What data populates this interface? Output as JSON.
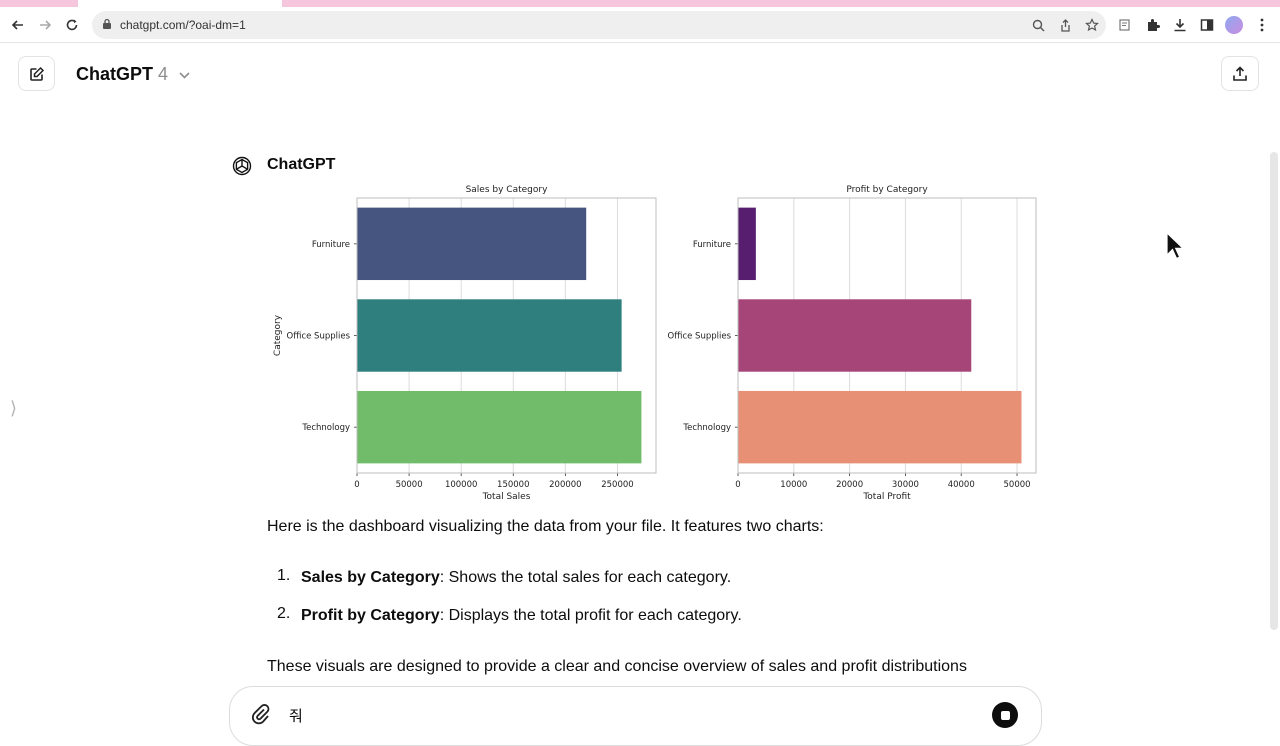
{
  "browser": {
    "url": "chatgpt.com/?oai-dm=1"
  },
  "header": {
    "model_name": "ChatGPT",
    "model_version": "4"
  },
  "message": {
    "author": "ChatGPT",
    "intro": "Here is the dashboard visualizing the data from your file. It features two charts:",
    "list": [
      {
        "num": "1.",
        "bold": "Sales by Category",
        "text": ": Shows the total sales for each category."
      },
      {
        "num": "2.",
        "bold": "Profit by Category",
        "text": ": Displays the total profit for each category."
      }
    ],
    "closing": "These visuals are designed to provide a clear and concise overview of sales and profit distributions"
  },
  "composer": {
    "typed_text": "줘"
  },
  "chart_data": [
    {
      "type": "bar",
      "orientation": "horizontal",
      "title": "Sales by Category",
      "xlabel": "Total Sales",
      "ylabel": "Category",
      "categories": [
        "Furniture",
        "Office Supplies",
        "Technology"
      ],
      "values": [
        220000,
        254000,
        273000
      ],
      "xticks": [
        "0",
        "50000",
        "100000",
        "150000",
        "200000",
        "250000"
      ],
      "xlim": [
        0,
        287000
      ],
      "colors": [
        "#465480",
        "#307f7f",
        "#70bc6a"
      ],
      "grid": true
    },
    {
      "type": "bar",
      "orientation": "horizontal",
      "title": "Profit by Category",
      "xlabel": "Total Profit",
      "ylabel": "",
      "categories": [
        "Furniture",
        "Office Supplies",
        "Technology"
      ],
      "values": [
        3200,
        41800,
        50800
      ],
      "xticks": [
        "0",
        "10000",
        "20000",
        "30000",
        "40000",
        "50000"
      ],
      "xlim": [
        0,
        53400
      ],
      "colors": [
        "#571e70",
        "#a64577",
        "#e89076"
      ],
      "grid": true
    }
  ]
}
